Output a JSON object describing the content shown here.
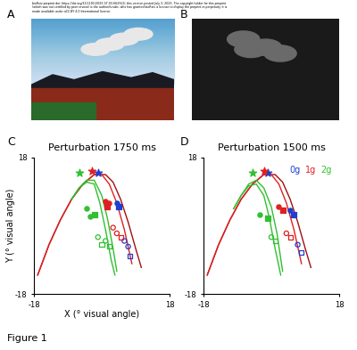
{
  "figure": {
    "header": [
      "bioRxiv preprint doi: https://doi.org/10.1101/2025.07.03.662924; this version posted July 3, 2025. The copyright holder for this preprint",
      "(which was not certified by peer review) is the author/funder, who has granted bioRxiv a license to display the preprint in perpetuity. It is",
      "made available under aCC-BY 4.0 International license."
    ],
    "caption": "Figure 1",
    "panels": [
      "A",
      "B",
      "C",
      "D"
    ]
  },
  "chart_data": [
    {
      "type": "line",
      "title": "Perturbation 1750 ms",
      "xlabel": "X (° visual angle)",
      "ylabel": "Y (° visual angle)",
      "xlim": [
        -18,
        18
      ],
      "ylim": [
        -18,
        18
      ],
      "xticks": [
        -18,
        18
      ],
      "yticks": [
        -18,
        18
      ],
      "series": [
        {
          "color": "#a01010",
          "type": "line",
          "x": [
            -17,
            -14,
            -11,
            -8,
            -5,
            -2,
            1,
            3,
            5,
            7,
            9,
            10.5
          ],
          "values": [
            -13,
            -5,
            1.5,
            7,
            11,
            13.5,
            13.5,
            11.5,
            7,
            1,
            -6,
            -11
          ]
        },
        {
          "color": "#e02020",
          "type": "line",
          "x": [
            -17,
            -14,
            -11,
            -8,
            -5,
            -2,
            0,
            2,
            4,
            6,
            8
          ],
          "values": [
            -13,
            -5,
            1.5,
            7,
            11,
            13.5,
            13.5,
            11,
            6,
            -1,
            -10
          ]
        },
        {
          "color": "#30c030",
          "type": "line",
          "x": [
            -8,
            -6,
            -4,
            -2,
            0,
            1.5,
            3,
            4
          ],
          "values": [
            7,
            10,
            12,
            12,
            8,
            2,
            -6,
            -12
          ]
        },
        {
          "color": "#30c030",
          "type": "line",
          "x": [
            -8,
            -6,
            -4,
            -2,
            -0.5,
            1,
            2.5,
            3.5
          ],
          "values": [
            7,
            10,
            11.5,
            11,
            6,
            -1,
            -9,
            -13
          ]
        },
        {
          "name": "0g",
          "color": "#1f3fd0",
          "type": "scatter",
          "marker": "star",
          "x": [
            -1
          ],
          "values": [
            14
          ]
        },
        {
          "name": "0g",
          "color": "#1f3fd0",
          "type": "scatter",
          "marker": "circle",
          "x": [
            4
          ],
          "values": [
            6
          ]
        },
        {
          "name": "0g",
          "color": "#1f3fd0",
          "type": "scatter",
          "marker": "square",
          "x": [
            4.5
          ],
          "values": [
            5
          ]
        },
        {
          "name": "0g",
          "color": "#1f3fd0",
          "type": "scatter",
          "marker": "open circle",
          "x": [
            6,
            7
          ],
          "values": [
            -4,
            -5.5
          ]
        },
        {
          "name": "0g",
          "color": "#1f3fd0",
          "type": "scatter",
          "marker": "open square",
          "x": [
            7.5
          ],
          "values": [
            -8
          ]
        },
        {
          "name": "1g",
          "color": "#e02020",
          "type": "scatter",
          "marker": "star",
          "x": [
            -2.5
          ],
          "values": [
            14.5
          ]
        },
        {
          "name": "1g",
          "color": "#e02020",
          "type": "scatter",
          "marker": "circle",
          "x": [
            1,
            2
          ],
          "values": [
            6.5,
            6
          ]
        },
        {
          "name": "1g",
          "color": "#e02020",
          "type": "scatter",
          "marker": "square",
          "x": [
            1.5
          ],
          "values": [
            5
          ]
        },
        {
          "name": "1g",
          "color": "#e02020",
          "type": "scatter",
          "marker": "open circle",
          "x": [
            3,
            4
          ],
          "values": [
            -0.5,
            -2
          ]
        },
        {
          "name": "1g",
          "color": "#e02020",
          "type": "scatter",
          "marker": "open square",
          "x": [
            5
          ],
          "values": [
            -3
          ]
        },
        {
          "name": "2g",
          "color": "#30c030",
          "type": "scatter",
          "marker": "star",
          "x": [
            -6
          ],
          "values": [
            14
          ]
        },
        {
          "name": "2g",
          "color": "#30c030",
          "type": "scatter",
          "marker": "circle",
          "x": [
            -4,
            -3
          ],
          "values": [
            4.5,
            2.5
          ]
        },
        {
          "name": "2g",
          "color": "#30c030",
          "type": "scatter",
          "marker": "square",
          "x": [
            -2
          ],
          "values": [
            3
          ]
        },
        {
          "name": "2g",
          "color": "#30c030",
          "type": "scatter",
          "marker": "open circle",
          "x": [
            -1,
            1
          ],
          "values": [
            -3,
            -4
          ]
        },
        {
          "name": "2g",
          "color": "#30c030",
          "type": "scatter",
          "marker": "open square",
          "x": [
            0,
            2
          ],
          "values": [
            -5,
            -5.5
          ]
        }
      ]
    },
    {
      "type": "line",
      "title": "Perturbation 1500 ms",
      "legend": "upper right",
      "xlim": [
        -18,
        18
      ],
      "ylim": [
        -18,
        18
      ],
      "xticks": [
        -18,
        18
      ],
      "yticks": [
        -18,
        18
      ],
      "series": [
        {
          "color": "#a01010",
          "type": "line",
          "x": [
            -17,
            -14,
            -11,
            -8,
            -5,
            -2,
            1,
            3,
            5,
            7,
            9,
            10.5
          ],
          "values": [
            -13,
            -5,
            1.5,
            7,
            11,
            13.5,
            13.5,
            11.5,
            7,
            1,
            -6,
            -11
          ]
        },
        {
          "color": "#e02020",
          "type": "line",
          "x": [
            -17,
            -14,
            -11,
            -8,
            -5,
            -2,
            0,
            2,
            4,
            6,
            8
          ],
          "values": [
            -13,
            -5,
            1.5,
            7,
            11,
            13.5,
            13.5,
            11,
            6,
            -1,
            -10
          ]
        },
        {
          "color": "#30c030",
          "type": "line",
          "x": [
            -10,
            -8,
            -6,
            -4,
            -2,
            0,
            1.5,
            3
          ],
          "values": [
            4.5,
            8,
            11,
            12,
            10,
            5,
            -2,
            -12
          ]
        },
        {
          "color": "#30c030",
          "type": "line",
          "x": [
            -10,
            -8,
            -6,
            -4,
            -2,
            -0.5,
            1,
            2.5
          ],
          "values": [
            4.5,
            8,
            10.5,
            11,
            8,
            2,
            -6,
            -13
          ]
        },
        {
          "name": "0g",
          "color": "#1f3fd0",
          "type": "scatter",
          "marker": "star",
          "x": [
            -1
          ],
          "values": [
            14
          ]
        },
        {
          "name": "0g",
          "color": "#1f3fd0",
          "type": "scatter",
          "marker": "circle",
          "x": [
            5
          ],
          "values": [
            4
          ]
        },
        {
          "name": "0g",
          "color": "#1f3fd0",
          "type": "scatter",
          "marker": "square",
          "x": [
            6
          ],
          "values": [
            3
          ]
        },
        {
          "name": "0g",
          "color": "#1f3fd0",
          "type": "scatter",
          "marker": "open circle",
          "x": [
            7
          ],
          "values": [
            -5
          ]
        },
        {
          "name": "0g",
          "color": "#1f3fd0",
          "type": "scatter",
          "marker": "open square",
          "x": [
            8
          ],
          "values": [
            -7
          ]
        },
        {
          "name": "1g",
          "color": "#e02020",
          "type": "scatter",
          "marker": "star",
          "x": [
            -2
          ],
          "values": [
            14.5
          ]
        },
        {
          "name": "1g",
          "color": "#e02020",
          "type": "scatter",
          "marker": "circle",
          "x": [
            2
          ],
          "values": [
            5
          ]
        },
        {
          "name": "1g",
          "color": "#e02020",
          "type": "scatter",
          "marker": "square",
          "x": [
            3
          ],
          "values": [
            4
          ]
        },
        {
          "name": "1g",
          "color": "#e02020",
          "type": "scatter",
          "marker": "open circle",
          "x": [
            4
          ],
          "values": [
            -2
          ]
        },
        {
          "name": "1g",
          "color": "#e02020",
          "type": "scatter",
          "marker": "open square",
          "x": [
            5
          ],
          "values": [
            -3
          ]
        },
        {
          "name": "2g",
          "color": "#30c030",
          "type": "scatter",
          "marker": "star",
          "x": [
            -5
          ],
          "values": [
            14
          ]
        },
        {
          "name": "2g",
          "color": "#30c030",
          "type": "scatter",
          "marker": "circle",
          "x": [
            -3
          ],
          "values": [
            3
          ]
        },
        {
          "name": "2g",
          "color": "#30c030",
          "type": "scatter",
          "marker": "square",
          "x": [
            -1
          ],
          "values": [
            2
          ]
        },
        {
          "name": "2g",
          "color": "#30c030",
          "type": "scatter",
          "marker": "open circle",
          "x": [
            0
          ],
          "values": [
            -3
          ]
        },
        {
          "name": "2g",
          "color": "#30c030",
          "type": "scatter",
          "marker": "open square",
          "x": [
            1
          ],
          "values": [
            -4
          ]
        }
      ]
    }
  ]
}
